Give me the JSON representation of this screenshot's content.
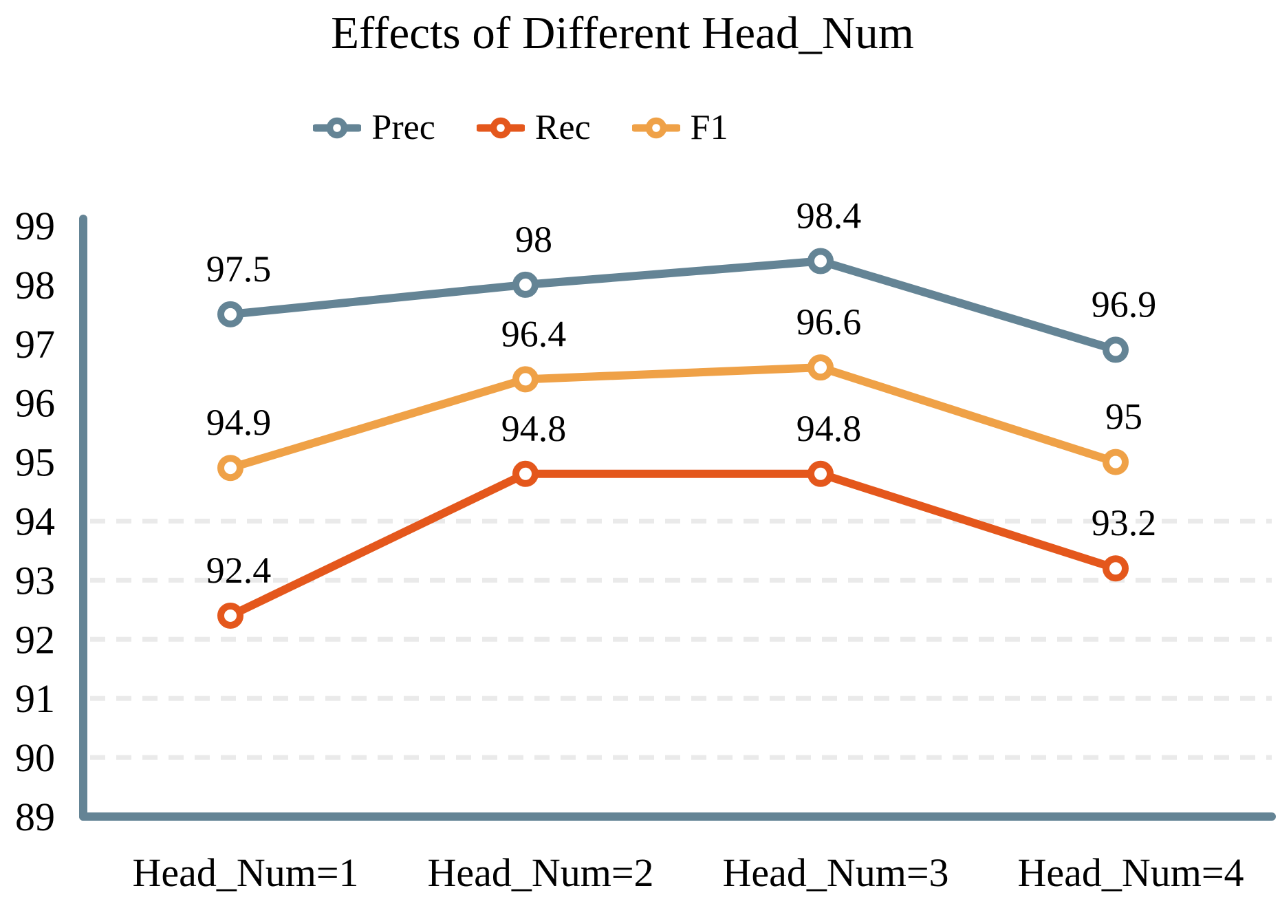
{
  "chart_data": {
    "type": "line",
    "title": "Effects of Different Head_Num",
    "categories": [
      "Head_Num=1",
      "Head_Num=2",
      "Head_Num=3",
      "Head_Num=4"
    ],
    "series": [
      {
        "name": "Prec",
        "color": "#648495",
        "values": [
          97.5,
          98,
          98.4,
          96.9
        ]
      },
      {
        "name": "Rec",
        "color": "#E4571C",
        "values": [
          92.4,
          94.8,
          94.8,
          93.2
        ]
      },
      {
        "name": "F1",
        "color": "#EFA147",
        "values": [
          94.9,
          96.4,
          96.6,
          95
        ]
      }
    ],
    "ylim": [
      89,
      99
    ],
    "yticks": [
      99,
      98,
      97,
      96,
      95,
      94,
      93,
      92,
      91,
      90,
      89
    ],
    "gridline_values": [
      94,
      93,
      92,
      91,
      90
    ],
    "grid_style": "dashed",
    "grid_color": "#EAEAEA",
    "axis_color": "#648495",
    "text_color": "#000000",
    "background": "#FFFFFF",
    "marker_style": "open-circle",
    "legend_position": "top-center",
    "legend": [
      "Prec",
      "Rec",
      "F1"
    ]
  }
}
